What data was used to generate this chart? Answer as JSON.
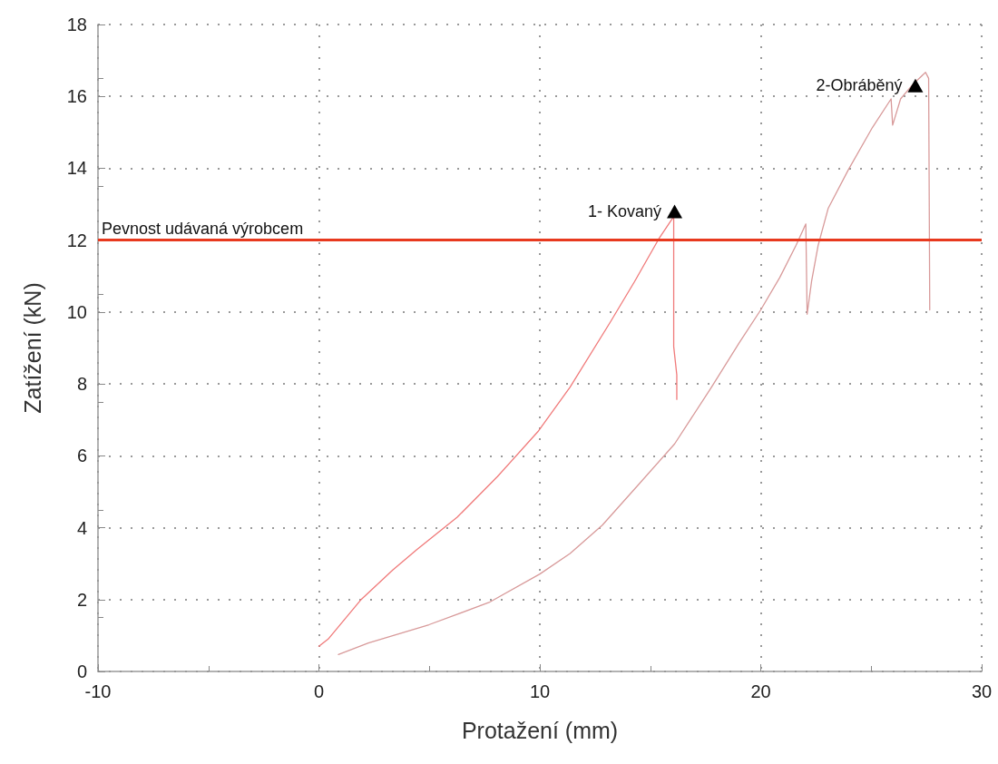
{
  "chart_data": {
    "type": "line",
    "xlabel": "Protažení (mm)",
    "ylabel": "Zatížení (kN)",
    "xlim": [
      -10,
      30
    ],
    "xticks": [
      -10,
      0,
      10,
      20,
      30
    ],
    "ylim": [
      0,
      18
    ],
    "yticks": [
      0,
      2,
      4,
      6,
      8,
      10,
      12,
      14,
      16,
      18
    ],
    "grid": true,
    "marker": "none",
    "line_style": "solid",
    "series": [
      {
        "color": "#f07a7a",
        "x": [
          0,
          0.42,
          1.88,
          3.34,
          4.43,
          6.26,
          8.08,
          9.91,
          11.37,
          13.19,
          14.29,
          15.38,
          15.93,
          16.06,
          16.06,
          16.2,
          16.2
        ],
        "values": [
          0.7,
          0.9,
          1.98,
          2.82,
          3.39,
          4.29,
          5.42,
          6.67,
          7.91,
          9.72,
          10.85,
          12.03,
          12.54,
          12.66,
          9.04,
          8.25,
          7.57
        ]
      },
      {
        "color": "#d89a9a",
        "x": [
          0.88,
          2.24,
          4.98,
          7.7,
          10,
          11.37,
          12.83,
          14.47,
          16.1,
          17.76,
          19.03,
          20,
          20.86,
          21.6,
          22.04,
          22.1,
          22.3,
          22.6,
          23.05,
          23.96,
          25.06,
          25.9,
          25.97,
          26.33,
          26.88,
          27.46,
          27.6,
          27.65
        ],
        "values": [
          0.47,
          0.79,
          1.3,
          1.92,
          2.71,
          3.28,
          4.07,
          5.2,
          6.33,
          7.9,
          9.15,
          10.06,
          10.96,
          11.86,
          12.45,
          9.94,
          10.85,
          11.86,
          12.88,
          13.95,
          15.14,
          15.93,
          15.2,
          15.93,
          16.33,
          16.67,
          16.5,
          10.06
        ]
      }
    ],
    "ref_lines": [
      {
        "axis": "y",
        "value": 12,
        "label": "Pevnost udávaná výrobcem",
        "color": "#e8391e"
      }
    ],
    "annotations": [
      {
        "text": "1- Kovaný",
        "x": 16.1,
        "y": 12.8
      },
      {
        "text": "2-Obráběný",
        "x": 27,
        "y": 16.3
      }
    ]
  }
}
